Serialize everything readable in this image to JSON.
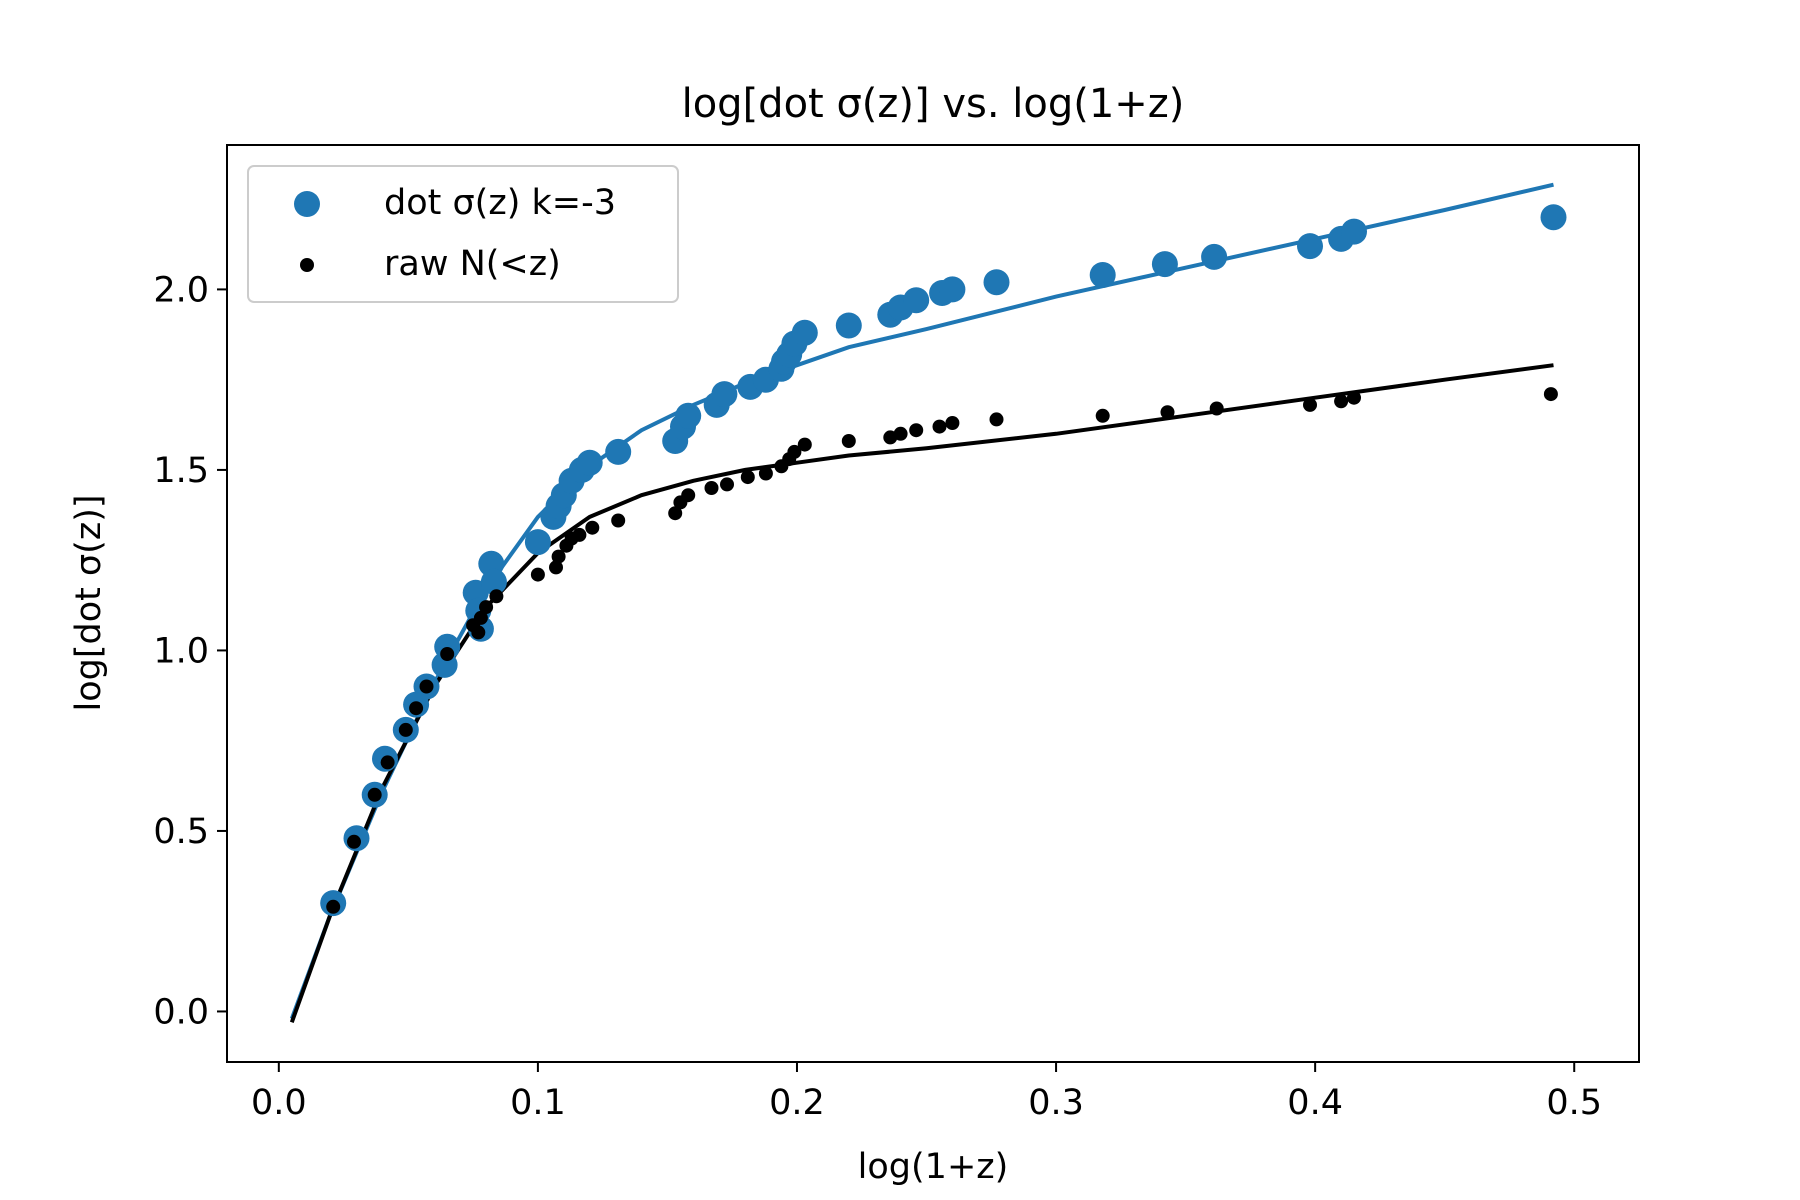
{
  "chart_data": {
    "type": "scatter",
    "title": "log[dot σ(z)] vs. log(1+z)",
    "xlabel": "log(1+z)",
    "ylabel": "log[dot σ(z)]",
    "xlim": [
      -0.02,
      0.525
    ],
    "ylim": [
      -0.14,
      2.4
    ],
    "xticks": [
      0.0,
      0.1,
      0.2,
      0.3,
      0.4,
      0.5
    ],
    "xtick_labels": [
      "0.0",
      "0.1",
      "0.2",
      "0.3",
      "0.4",
      "0.5"
    ],
    "yticks": [
      0.0,
      0.5,
      1.0,
      1.5,
      2.0
    ],
    "ytick_labels": [
      "0.0",
      "0.5",
      "1.0",
      "1.5",
      "2.0"
    ],
    "grid": false,
    "legend_position": "upper-left",
    "series": [
      {
        "name": "dot σ(z) k=-3",
        "kind": "scatter",
        "color": "#1f77b4",
        "marker": "large-circle",
        "x": [
          0.021,
          0.03,
          0.037,
          0.041,
          0.049,
          0.053,
          0.057,
          0.064,
          0.065,
          0.076,
          0.077,
          0.078,
          0.082,
          0.083,
          0.1,
          0.106,
          0.108,
          0.11,
          0.113,
          0.117,
          0.12,
          0.131,
          0.153,
          0.156,
          0.158,
          0.169,
          0.172,
          0.182,
          0.188,
          0.194,
          0.195,
          0.197,
          0.199,
          0.203,
          0.22,
          0.236,
          0.24,
          0.246,
          0.256,
          0.26,
          0.277,
          0.318,
          0.342,
          0.361,
          0.398,
          0.41,
          0.415,
          0.492
        ],
        "y": [
          0.3,
          0.48,
          0.6,
          0.7,
          0.78,
          0.85,
          0.9,
          0.96,
          1.01,
          1.16,
          1.11,
          1.06,
          1.24,
          1.19,
          1.3,
          1.37,
          1.4,
          1.43,
          1.47,
          1.5,
          1.52,
          1.55,
          1.58,
          1.62,
          1.65,
          1.68,
          1.71,
          1.73,
          1.75,
          1.78,
          1.8,
          1.82,
          1.85,
          1.88,
          1.9,
          1.93,
          1.95,
          1.97,
          1.99,
          2.0,
          2.02,
          2.04,
          2.07,
          2.09,
          2.12,
          2.14,
          2.16,
          2.2
        ]
      },
      {
        "name": "raw N(<z)",
        "kind": "scatter",
        "color": "#000000",
        "marker": "small-circle",
        "x": [
          0.021,
          0.029,
          0.037,
          0.042,
          0.049,
          0.053,
          0.057,
          0.065,
          0.075,
          0.077,
          0.078,
          0.08,
          0.084,
          0.1,
          0.107,
          0.108,
          0.111,
          0.113,
          0.116,
          0.121,
          0.131,
          0.153,
          0.155,
          0.158,
          0.167,
          0.173,
          0.181,
          0.188,
          0.194,
          0.197,
          0.199,
          0.203,
          0.22,
          0.236,
          0.24,
          0.246,
          0.255,
          0.26,
          0.277,
          0.318,
          0.343,
          0.362,
          0.398,
          0.41,
          0.415,
          0.491
        ],
        "y": [
          0.29,
          0.47,
          0.6,
          0.69,
          0.78,
          0.84,
          0.9,
          0.99,
          1.07,
          1.05,
          1.09,
          1.12,
          1.15,
          1.21,
          1.23,
          1.26,
          1.29,
          1.31,
          1.32,
          1.34,
          1.36,
          1.38,
          1.41,
          1.43,
          1.45,
          1.46,
          1.48,
          1.49,
          1.51,
          1.53,
          1.55,
          1.57,
          1.58,
          1.59,
          1.6,
          1.61,
          1.62,
          1.63,
          1.64,
          1.65,
          1.66,
          1.67,
          1.68,
          1.69,
          1.7,
          1.71
        ]
      },
      {
        "kind": "line",
        "color": "#1f77b4",
        "x": [
          0.005,
          0.02,
          0.04,
          0.06,
          0.08,
          0.1,
          0.12,
          0.14,
          0.16,
          0.18,
          0.2,
          0.22,
          0.25,
          0.3,
          0.35,
          0.4,
          0.45,
          0.492
        ],
        "y": [
          -0.02,
          0.27,
          0.61,
          0.91,
          1.17,
          1.37,
          1.51,
          1.61,
          1.68,
          1.74,
          1.79,
          1.84,
          1.89,
          1.98,
          2.06,
          2.14,
          2.22,
          2.29
        ]
      },
      {
        "kind": "line",
        "color": "#000000",
        "x": [
          0.005,
          0.02,
          0.04,
          0.06,
          0.08,
          0.1,
          0.12,
          0.14,
          0.16,
          0.18,
          0.2,
          0.22,
          0.25,
          0.3,
          0.35,
          0.4,
          0.45,
          0.492
        ],
        "y": [
          -0.03,
          0.27,
          0.62,
          0.9,
          1.12,
          1.27,
          1.37,
          1.43,
          1.47,
          1.5,
          1.52,
          1.54,
          1.56,
          1.6,
          1.65,
          1.7,
          1.75,
          1.79
        ]
      }
    ]
  }
}
